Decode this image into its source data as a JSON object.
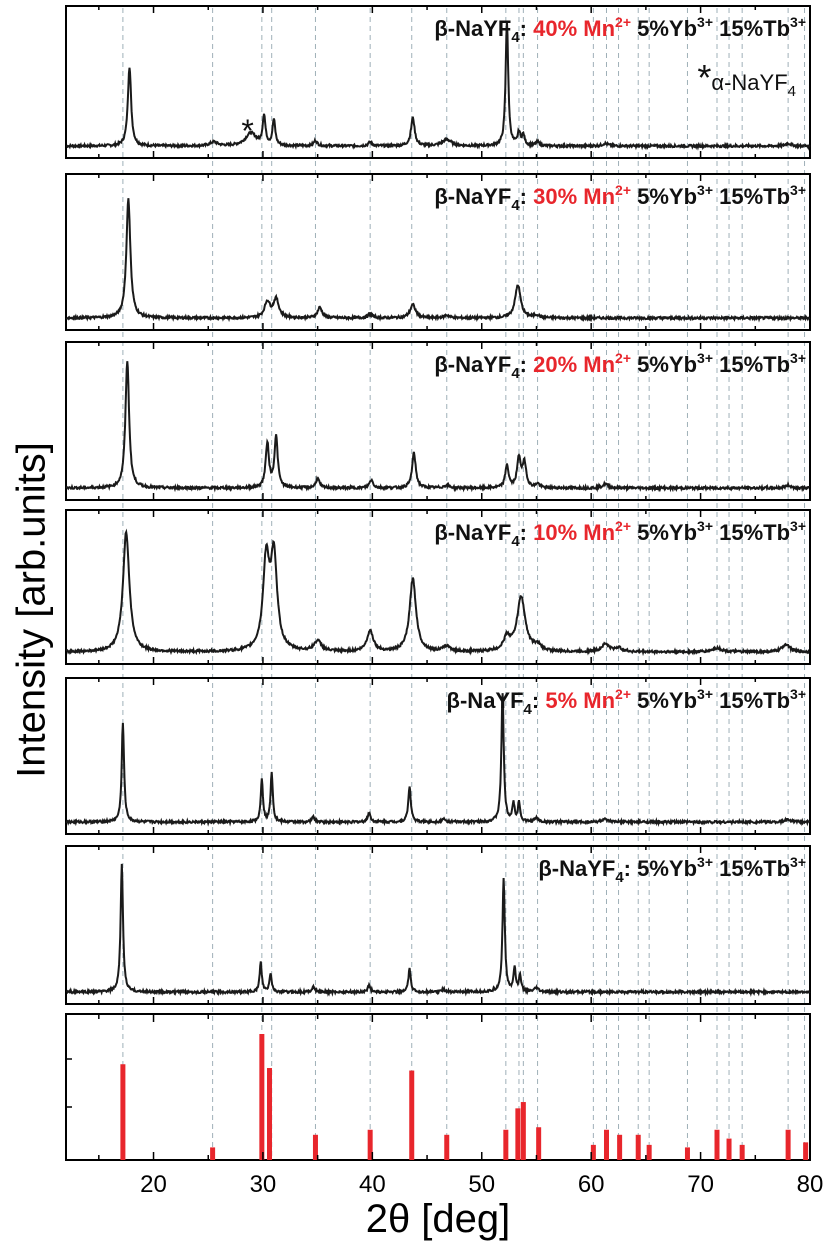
{
  "chart_data": {
    "type": "line",
    "xlabel": "2θ [deg]",
    "ylabel": "Intensity [arb.units]",
    "xlim": [
      12,
      80
    ],
    "x_ticks": [
      20,
      30,
      40,
      50,
      60,
      70,
      80
    ],
    "reference_lines_x": [
      17.2,
      25.4,
      29.9,
      30.8,
      34.8,
      39.8,
      43.6,
      46.8,
      52.2,
      53.4,
      53.8,
      55.1,
      60.2,
      61.4,
      62.5,
      64.3,
      65.3,
      68.8,
      71.5,
      72.6,
      73.8,
      78.0,
      79.5
    ],
    "panels": [
      {
        "title_prefix": "β-NaYF",
        "title_sub": "4",
        "title_colon": ": ",
        "mn_label": "40% Mn",
        "mn_sup": "2+",
        "yb_label": " 5%Yb",
        "yb_sup": "3+",
        "tb_label": " 15%Tb",
        "tb_sup": "3+",
        "alpha_marker": "*",
        "alpha_label": "α-NaYF",
        "alpha_sub": "4",
        "star_marker": "*",
        "star_x": 28.6,
        "peaks": [
          [
            17.8,
            0.62,
            0.18
          ],
          [
            25.5,
            0.03,
            0.4
          ],
          [
            28.9,
            0.1,
            0.6
          ],
          [
            30.1,
            0.23,
            0.15
          ],
          [
            31.0,
            0.2,
            0.15
          ],
          [
            34.8,
            0.04,
            0.2
          ],
          [
            39.8,
            0.03,
            0.2
          ],
          [
            43.7,
            0.22,
            0.2
          ],
          [
            46.8,
            0.05,
            0.5
          ],
          [
            52.3,
            0.98,
            0.14
          ],
          [
            53.4,
            0.1,
            0.15
          ],
          [
            53.8,
            0.08,
            0.15
          ],
          [
            55.1,
            0.03,
            0.2
          ],
          [
            61.3,
            0.02,
            0.3
          ],
          [
            78.0,
            0.02,
            0.3
          ]
        ]
      },
      {
        "title_prefix": "β-NaYF",
        "title_sub": "4",
        "title_colon": ": ",
        "mn_label": "30% Mn",
        "mn_sup": "2+",
        "yb_label": " 5%Yb",
        "yb_sup": "3+",
        "tb_label": " 15%Tb",
        "tb_sup": "3+",
        "peaks": [
          [
            17.7,
            0.9,
            0.22
          ],
          [
            30.4,
            0.12,
            0.3
          ],
          [
            31.2,
            0.14,
            0.3
          ],
          [
            35.2,
            0.08,
            0.25
          ],
          [
            39.8,
            0.03,
            0.25
          ],
          [
            43.7,
            0.1,
            0.3
          ],
          [
            46.8,
            0.02,
            0.3
          ],
          [
            53.3,
            0.25,
            0.3
          ],
          [
            55.0,
            0.02,
            0.3
          ]
        ]
      },
      {
        "title_prefix": "β-NaYF",
        "title_sub": "4",
        "title_colon": ": ",
        "mn_label": "20% Mn",
        "mn_sup": "2+",
        "yb_label": " 5%Yb",
        "yb_sup": "3+",
        "tb_label": " 15%Tb",
        "tb_sup": "3+",
        "peaks": [
          [
            17.6,
            0.95,
            0.2
          ],
          [
            30.4,
            0.33,
            0.18
          ],
          [
            31.2,
            0.38,
            0.18
          ],
          [
            35.0,
            0.07,
            0.2
          ],
          [
            39.9,
            0.06,
            0.2
          ],
          [
            43.8,
            0.26,
            0.2
          ],
          [
            46.8,
            0.02,
            0.3
          ],
          [
            52.3,
            0.17,
            0.18
          ],
          [
            53.4,
            0.22,
            0.2
          ],
          [
            53.9,
            0.18,
            0.2
          ],
          [
            55.1,
            0.03,
            0.2
          ],
          [
            61.3,
            0.03,
            0.3
          ],
          [
            78.0,
            0.02,
            0.3
          ]
        ]
      },
      {
        "title_prefix": "β-NaYF",
        "title_sub": "4",
        "title_colon": ": ",
        "mn_label": "10% Mn",
        "mn_sup": "2+",
        "yb_label": " 5%Yb",
        "yb_sup": "3+",
        "tb_label": " 15%Tb",
        "tb_sup": "3+",
        "peaks": [
          [
            17.5,
            0.92,
            0.35
          ],
          [
            30.3,
            0.68,
            0.35
          ],
          [
            31.0,
            0.7,
            0.35
          ],
          [
            35.0,
            0.08,
            0.4
          ],
          [
            39.8,
            0.16,
            0.35
          ],
          [
            43.7,
            0.56,
            0.35
          ],
          [
            46.8,
            0.04,
            0.4
          ],
          [
            52.3,
            0.1,
            0.35
          ],
          [
            53.6,
            0.42,
            0.45
          ],
          [
            55.1,
            0.04,
            0.4
          ],
          [
            61.3,
            0.06,
            0.4
          ],
          [
            62.5,
            0.03,
            0.4
          ],
          [
            71.5,
            0.03,
            0.5
          ],
          [
            77.8,
            0.06,
            0.4
          ]
        ]
      },
      {
        "title_prefix": "β-NaYF",
        "title_sub": "4",
        "title_colon": ": ",
        "mn_label": "5% Mn",
        "mn_sup": "2+",
        "yb_label": " 5%Yb",
        "yb_sup": "3+",
        "tb_label": " 15%Tb",
        "tb_sup": "3+",
        "peaks": [
          [
            17.2,
            0.75,
            0.13
          ],
          [
            29.9,
            0.33,
            0.12
          ],
          [
            30.8,
            0.38,
            0.12
          ],
          [
            34.6,
            0.04,
            0.15
          ],
          [
            39.7,
            0.07,
            0.15
          ],
          [
            43.4,
            0.27,
            0.14
          ],
          [
            46.5,
            0.02,
            0.2
          ],
          [
            51.9,
            0.98,
            0.13
          ],
          [
            52.9,
            0.14,
            0.12
          ],
          [
            53.4,
            0.15,
            0.12
          ],
          [
            55.0,
            0.03,
            0.2
          ],
          [
            61.2,
            0.02,
            0.3
          ],
          [
            78.0,
            0.02,
            0.3
          ]
        ]
      },
      {
        "title_prefix": "β-NaYF",
        "title_sub": "4",
        "title_colon": ": ",
        "mn_label": "",
        "mn_sup": "",
        "yb_label": "5%Yb",
        "yb_sup": "3+",
        "tb_label": " 15%Tb",
        "tb_sup": "3+",
        "peaks": [
          [
            17.1,
            0.96,
            0.13
          ],
          [
            29.8,
            0.22,
            0.12
          ],
          [
            30.7,
            0.14,
            0.12
          ],
          [
            34.6,
            0.04,
            0.15
          ],
          [
            39.7,
            0.05,
            0.15
          ],
          [
            43.4,
            0.17,
            0.13
          ],
          [
            46.5,
            0.02,
            0.2
          ],
          [
            52.0,
            0.84,
            0.13
          ],
          [
            53.0,
            0.18,
            0.12
          ],
          [
            53.5,
            0.12,
            0.12
          ],
          [
            55.0,
            0.03,
            0.2
          ]
        ]
      }
    ],
    "reference_bars": {
      "x": [
        17.2,
        25.4,
        29.9,
        30.6,
        34.8,
        39.8,
        43.6,
        46.8,
        52.2,
        53.3,
        53.8,
        55.2,
        60.2,
        61.4,
        62.6,
        64.3,
        65.3,
        68.8,
        71.5,
        72.6,
        73.8,
        78.0,
        79.6
      ],
      "height": [
        0.76,
        0.1,
        1.0,
        0.73,
        0.2,
        0.24,
        0.71,
        0.2,
        0.24,
        0.41,
        0.46,
        0.26,
        0.12,
        0.24,
        0.2,
        0.2,
        0.12,
        0.1,
        0.24,
        0.17,
        0.12,
        0.24,
        0.14
      ]
    },
    "colors": {
      "trace": "#1a1a1a",
      "reference_bar": "#e8262c",
      "mn_text": "#e8262c",
      "guide": "#9fb0b8"
    }
  }
}
